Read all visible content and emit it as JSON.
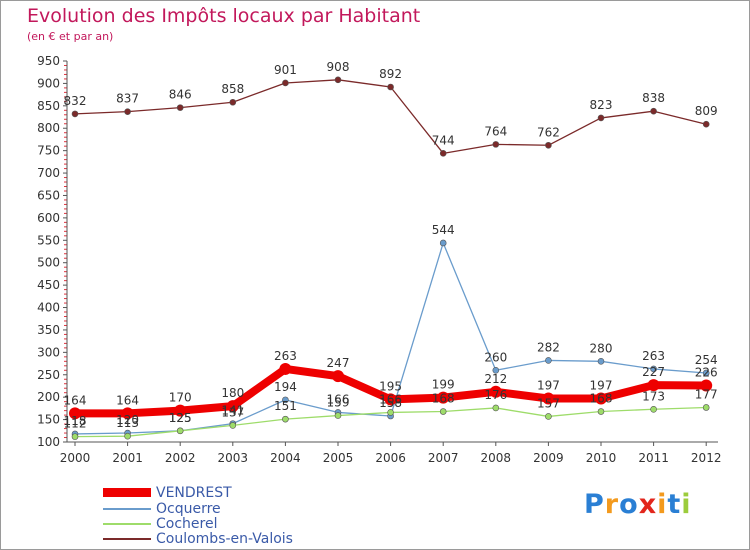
{
  "title": "Evolution des Impôts locaux par Habitant",
  "subtitle": "(en € et par an)",
  "brand": {
    "text": "Proxiti",
    "colors": [
      "#2a7fd4",
      "#f39a1e",
      "#2a7fd4",
      "#e2261c",
      "#f39a1e",
      "#2a7fd4",
      "#9ccc3c"
    ]
  },
  "colors": {
    "title": "#c2185b",
    "axis": "#555555",
    "grid": "#ffffff",
    "tick_marks": "#e0323e"
  },
  "chart_data": {
    "type": "line",
    "title": "Evolution des Impôts locaux par Habitant",
    "subtitle": "(en € et par an)",
    "xlabel": "",
    "ylabel": "",
    "ylim": [
      100,
      950
    ],
    "yticks": [
      100,
      150,
      200,
      250,
      300,
      350,
      400,
      450,
      500,
      550,
      600,
      650,
      700,
      750,
      800,
      850,
      900,
      950
    ],
    "x": [
      "2000",
      "2001",
      "2002",
      "2003",
      "2004",
      "2005",
      "2006",
      "2007",
      "2008",
      "2009",
      "2010",
      "2011",
      "2012"
    ],
    "legend_position": "bottom-left",
    "grid": false,
    "series": [
      {
        "name": "VENDREST",
        "color": "#ee0000",
        "values": [
          164,
          164,
          170,
          180,
          263,
          247,
          195,
          199,
          212,
          197,
          197,
          227,
          226
        ],
        "labels": [
          "164",
          "164",
          "170",
          "180",
          "263",
          "247",
          "195",
          "199",
          "212",
          "197",
          "197",
          "227",
          "226"
        ]
      },
      {
        "name": "Ocquerre",
        "color": "#6a9ccc",
        "values": [
          118,
          120,
          125,
          141,
          194,
          166,
          158,
          544,
          260,
          282,
          280,
          263,
          254
        ],
        "labels": [
          "118",
          "120",
          "125",
          "141",
          "194",
          "166",
          "158",
          "544",
          "260",
          "282",
          "280",
          "263",
          "254"
        ]
      },
      {
        "name": "Cocherel",
        "color": "#9edc6a",
        "values": [
          112,
          113,
          125,
          137,
          151,
          159,
          166,
          168,
          176,
          157,
          168,
          173,
          177
        ],
        "labels": [
          "112",
          "113",
          "125",
          "137",
          "151",
          "159",
          "166",
          "168",
          "176",
          "157",
          "168",
          "173",
          "177"
        ]
      },
      {
        "name": "Coulombs-en-Valois",
        "color": "#7b2a2a",
        "values": [
          832,
          837,
          846,
          858,
          901,
          908,
          892,
          744,
          764,
          762,
          823,
          838,
          809
        ],
        "labels": [
          "832",
          "837",
          "846",
          "858",
          "901",
          "908",
          "892",
          "744",
          "764",
          "762",
          "823",
          "838",
          "809"
        ]
      }
    ]
  }
}
